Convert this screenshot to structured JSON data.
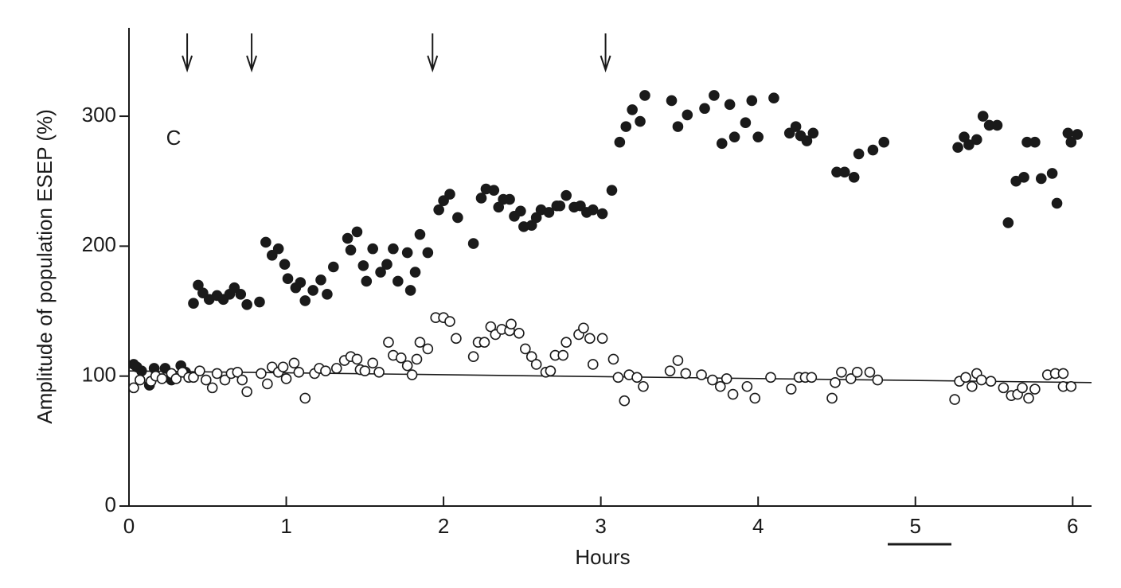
{
  "chart_data": {
    "type": "scatter",
    "xlabel": "Hours",
    "ylabel": "Amplitude of population ESEP (%)",
    "annotation": "C",
    "xlim": [
      0,
      6.12
    ],
    "ylim": [
      0,
      368
    ],
    "xticks": [
      0,
      1,
      2,
      3,
      4,
      5,
      6
    ],
    "yticks": [
      0,
      100,
      200,
      300
    ],
    "arrows_x": [
      0.37,
      0.78,
      1.93,
      3.03
    ],
    "trend_line": {
      "x": [
        0,
        6.12
      ],
      "y": [
        104,
        95
      ]
    },
    "series": [
      {
        "marker": "filled",
        "color": "#1a1a1a",
        "x": [
          0.03,
          0.05,
          0.08,
          0.13,
          0.16,
          0.23,
          0.27,
          0.33,
          0.36,
          0.41,
          0.44,
          0.47,
          0.51,
          0.56,
          0.6,
          0.64,
          0.67,
          0.71,
          0.75,
          0.83,
          0.87,
          0.91,
          0.95,
          0.99,
          1.01,
          1.06,
          1.09,
          1.12,
          1.17,
          1.22,
          1.26,
          1.3,
          1.39,
          1.41,
          1.45,
          1.49,
          1.51,
          1.55,
          1.6,
          1.64,
          1.68,
          1.71,
          1.77,
          1.79,
          1.82,
          1.85,
          1.9,
          1.97,
          2.0,
          2.04,
          2.09,
          2.19,
          2.24,
          2.27,
          2.32,
          2.35,
          2.38,
          2.42,
          2.45,
          2.49,
          2.51,
          2.56,
          2.59,
          2.62,
          2.67,
          2.72,
          2.74,
          2.78,
          2.83,
          2.87,
          2.91,
          2.95,
          3.01,
          3.07,
          3.12,
          3.16,
          3.2,
          3.25,
          3.28,
          3.45,
          3.49,
          3.55,
          3.66,
          3.72,
          3.77,
          3.82,
          3.85,
          3.92,
          3.96,
          4.0,
          4.1,
          4.2,
          4.24,
          4.27,
          4.31,
          4.35,
          4.5,
          4.55,
          4.61,
          4.64,
          4.73,
          4.8,
          5.27,
          5.31,
          5.34,
          5.39,
          5.43,
          5.47,
          5.52,
          5.59,
          5.64,
          5.69,
          5.71,
          5.76,
          5.8,
          5.87,
          5.9,
          5.97,
          5.99,
          6.03
        ],
        "values": [
          109,
          107,
          104,
          93,
          106,
          106,
          97,
          108,
          103,
          156,
          170,
          164,
          159,
          162,
          159,
          163,
          168,
          163,
          155,
          157,
          203,
          193,
          198,
          186,
          175,
          168,
          172,
          158,
          166,
          174,
          163,
          184,
          206,
          197,
          211,
          185,
          173,
          198,
          180,
          186,
          198,
          173,
          195,
          166,
          180,
          209,
          195,
          228,
          235,
          240,
          222,
          202,
          237,
          244,
          243,
          230,
          236,
          236,
          223,
          227,
          215,
          216,
          222,
          228,
          226,
          231,
          231,
          239,
          230,
          231,
          226,
          228,
          225,
          243,
          280,
          292,
          305,
          296,
          316,
          312,
          292,
          301,
          306,
          316,
          279,
          309,
          284,
          295,
          312,
          284,
          314,
          287,
          292,
          285,
          281,
          287,
          257,
          257,
          253,
          271,
          274,
          280,
          276,
          284,
          278,
          282,
          300,
          293,
          293,
          218,
          250,
          253,
          280,
          280,
          252,
          256,
          233,
          287,
          280,
          286
        ]
      },
      {
        "marker": "open",
        "color": "#1a1a1a",
        "x": [
          0.03,
          0.07,
          0.14,
          0.17,
          0.21,
          0.27,
          0.3,
          0.34,
          0.38,
          0.41,
          0.45,
          0.49,
          0.53,
          0.56,
          0.61,
          0.65,
          0.69,
          0.72,
          0.75,
          0.84,
          0.88,
          0.91,
          0.95,
          0.98,
          1.0,
          1.05,
          1.08,
          1.12,
          1.18,
          1.21,
          1.25,
          1.32,
          1.37,
          1.41,
          1.45,
          1.47,
          1.5,
          1.55,
          1.59,
          1.65,
          1.68,
          1.73,
          1.77,
          1.8,
          1.83,
          1.85,
          1.9,
          1.95,
          2.0,
          2.04,
          2.08,
          2.19,
          2.22,
          2.26,
          2.3,
          2.33,
          2.37,
          2.42,
          2.43,
          2.48,
          2.52,
          2.56,
          2.59,
          2.65,
          2.68,
          2.71,
          2.76,
          2.78,
          2.86,
          2.89,
          2.93,
          2.95,
          3.01,
          3.08,
          3.11,
          3.15,
          3.18,
          3.23,
          3.27,
          3.44,
          3.49,
          3.54,
          3.64,
          3.71,
          3.76,
          3.8,
          3.84,
          3.93,
          3.98,
          4.08,
          4.21,
          4.26,
          4.3,
          4.34,
          4.47,
          4.49,
          4.53,
          4.59,
          4.63,
          4.71,
          4.76,
          5.25,
          5.28,
          5.32,
          5.36,
          5.39,
          5.42,
          5.48,
          5.56,
          5.61,
          5.65,
          5.68,
          5.72,
          5.76,
          5.84,
          5.89,
          5.94,
          5.94,
          5.99
        ],
        "values": [
          91,
          97,
          96,
          100,
          98,
          102,
          98,
          103,
          99,
          99,
          104,
          97,
          91,
          102,
          97,
          102,
          103,
          97,
          88,
          102,
          94,
          107,
          103,
          107,
          98,
          110,
          103,
          83,
          102,
          106,
          104,
          106,
          112,
          115,
          113,
          105,
          104,
          110,
          103,
          126,
          116,
          114,
          108,
          101,
          113,
          126,
          121,
          145,
          145,
          142,
          129,
          115,
          126,
          126,
          138,
          132,
          136,
          135,
          140,
          133,
          121,
          115,
          109,
          103,
          104,
          116,
          116,
          126,
          132,
          137,
          129,
          109,
          129,
          113,
          99,
          81,
          101,
          99,
          92,
          104,
          112,
          102,
          101,
          97,
          92,
          98,
          86,
          92,
          83,
          99,
          90,
          99,
          99,
          99,
          83,
          95,
          103,
          98,
          103,
          103,
          97,
          82,
          96,
          99,
          92,
          102,
          97,
          96,
          91,
          85,
          86,
          91,
          83,
          90,
          101,
          102,
          102,
          92,
          92
        ]
      }
    ]
  }
}
